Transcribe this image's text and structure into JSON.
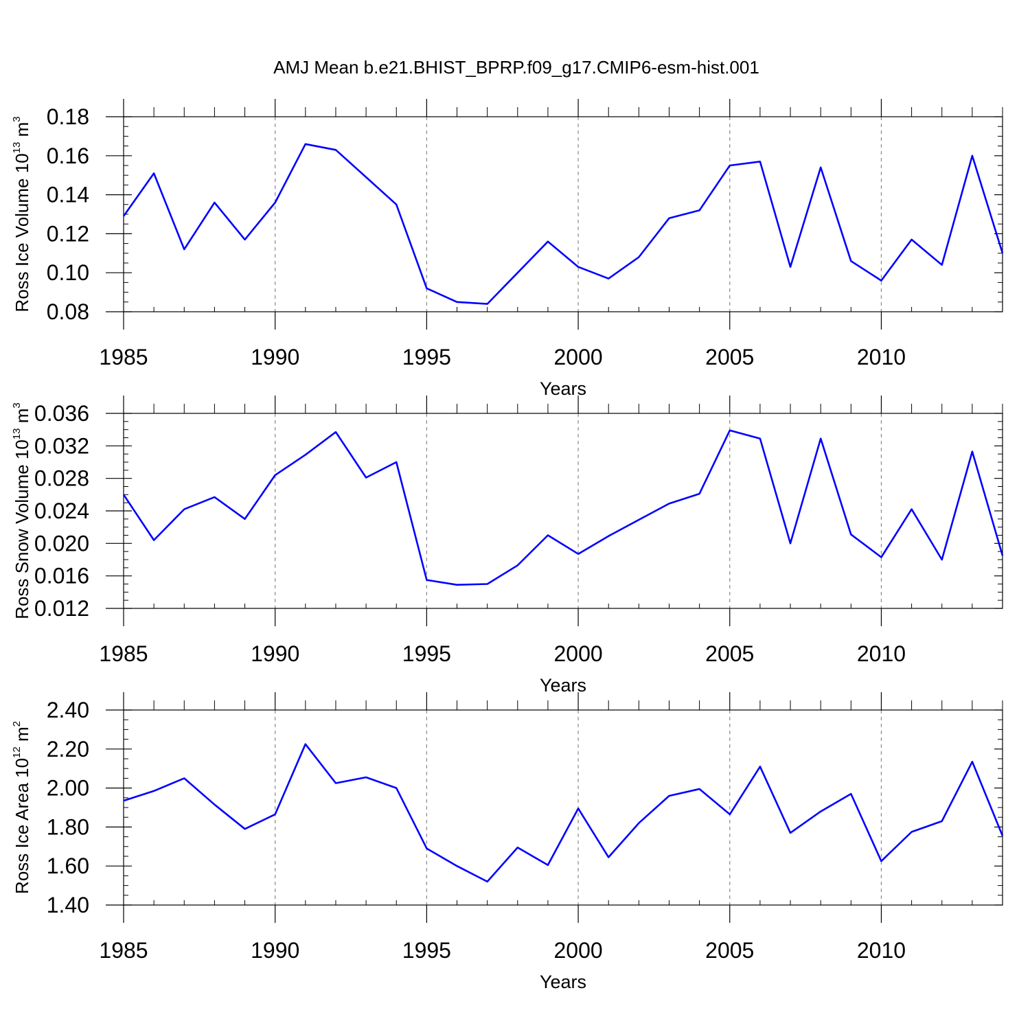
{
  "title": "AMJ Mean b.e21.BHIST_BPRP.f09_g17.CMIP6-esm-hist.001",
  "line_color": "#0000ff",
  "chart_data": [
    {
      "type": "line",
      "ylabel": {
        "main": "Ross Ice Volume 10",
        "exp": "13",
        "unit": " m",
        "unit_exp": "3"
      },
      "xlabel": "Years",
      "xlim": [
        1985,
        2014
      ],
      "ylim": [
        0.08,
        0.18
      ],
      "yticks": [
        0.08,
        0.1,
        0.12,
        0.14,
        0.16,
        0.18
      ],
      "ytick_labels": [
        "0.08",
        "0.10",
        "0.12",
        "0.14",
        "0.16",
        "0.18"
      ],
      "yminor_step": 0.005,
      "xticks": [
        1985,
        1990,
        1995,
        2000,
        2005,
        2010
      ],
      "xtick_labels": [
        "1985",
        "1990",
        "1995",
        "2000",
        "2005",
        "2010"
      ],
      "grid_x": [
        1990,
        1995,
        2000,
        2005,
        2010
      ],
      "series": [
        {
          "name": "Ross Ice Volume",
          "x": [
            1985,
            1986,
            1987,
            1988,
            1989,
            1990,
            1991,
            1992,
            1993,
            1994,
            1995,
            1996,
            1997,
            1998,
            1999,
            2000,
            2001,
            2002,
            2003,
            2004,
            2005,
            2006,
            2007,
            2008,
            2009,
            2010,
            2011,
            2012,
            2013,
            2014
          ],
          "values": [
            0.129,
            0.151,
            0.112,
            0.136,
            0.117,
            0.136,
            0.166,
            0.163,
            0.149,
            0.135,
            0.092,
            0.085,
            0.084,
            0.1,
            0.116,
            0.103,
            0.097,
            0.108,
            0.128,
            0.132,
            0.155,
            0.157,
            0.103,
            0.154,
            0.106,
            0.096,
            0.117,
            0.104,
            0.16,
            0.11
          ]
        }
      ]
    },
    {
      "type": "line",
      "ylabel": {
        "main": "Ross Snow Volume 10",
        "exp": "13",
        "unit": " m",
        "unit_exp": "3"
      },
      "xlabel": "Years",
      "xlim": [
        1985,
        2014
      ],
      "ylim": [
        0.012,
        0.036
      ],
      "yticks": [
        0.012,
        0.016,
        0.02,
        0.024,
        0.028,
        0.032,
        0.036
      ],
      "ytick_labels": [
        "0.012",
        "0.016",
        "0.020",
        "0.024",
        "0.028",
        "0.032",
        "0.036"
      ],
      "yminor_step": 0.001,
      "xticks": [
        1985,
        1990,
        1995,
        2000,
        2005,
        2010
      ],
      "xtick_labels": [
        "1985",
        "1990",
        "1995",
        "2000",
        "2005",
        "2010"
      ],
      "grid_x": [
        1990,
        1995,
        2000,
        2005,
        2010
      ],
      "series": [
        {
          "name": "Ross Snow Volume",
          "x": [
            1985,
            1986,
            1987,
            1988,
            1989,
            1990,
            1991,
            1992,
            1993,
            1994,
            1995,
            1996,
            1997,
            1998,
            1999,
            2000,
            2001,
            2002,
            2003,
            2004,
            2005,
            2006,
            2007,
            2008,
            2009,
            2010,
            2011,
            2012,
            2013,
            2014
          ],
          "values": [
            0.026,
            0.0204,
            0.0242,
            0.0257,
            0.023,
            0.0284,
            0.0309,
            0.0337,
            0.0281,
            0.03,
            0.0155,
            0.0149,
            0.015,
            0.0173,
            0.021,
            0.0187,
            0.0209,
            0.0229,
            0.0249,
            0.0261,
            0.0339,
            0.0329,
            0.02,
            0.0329,
            0.0211,
            0.0183,
            0.0242,
            0.018,
            0.0313,
            0.0185
          ]
        }
      ]
    },
    {
      "type": "line",
      "ylabel": {
        "main": "Ross Ice Area 10",
        "exp": "12",
        "unit": " m",
        "unit_exp": "2"
      },
      "xlabel": "Years",
      "xlim": [
        1985,
        2014
      ],
      "ylim": [
        1.4,
        2.4
      ],
      "yticks": [
        1.4,
        1.6,
        1.8,
        2.0,
        2.2,
        2.4
      ],
      "ytick_labels": [
        "1.40",
        "1.60",
        "1.80",
        "2.00",
        "2.20",
        "2.40"
      ],
      "yminor_step": 0.05,
      "xticks": [
        1985,
        1990,
        1995,
        2000,
        2005,
        2010
      ],
      "xtick_labels": [
        "1985",
        "1990",
        "1995",
        "2000",
        "2005",
        "2010"
      ],
      "grid_x": [
        1990,
        1995,
        2000,
        2005,
        2010
      ],
      "series": [
        {
          "name": "Ross Ice Area",
          "x": [
            1985,
            1986,
            1987,
            1988,
            1989,
            1990,
            1991,
            1992,
            1993,
            1994,
            1995,
            1996,
            1997,
            1998,
            1999,
            2000,
            2001,
            2002,
            2003,
            2004,
            2005,
            2006,
            2007,
            2008,
            2009,
            2010,
            2011,
            2012,
            2013,
            2014
          ],
          "values": [
            1.935,
            1.985,
            2.05,
            1.915,
            1.79,
            1.865,
            2.225,
            2.025,
            2.055,
            2.0,
            1.69,
            1.6,
            1.52,
            1.695,
            1.605,
            1.895,
            1.645,
            1.82,
            1.96,
            1.995,
            1.865,
            2.11,
            1.77,
            1.88,
            1.97,
            1.625,
            1.775,
            1.83,
            2.135,
            1.755
          ]
        }
      ]
    }
  ]
}
